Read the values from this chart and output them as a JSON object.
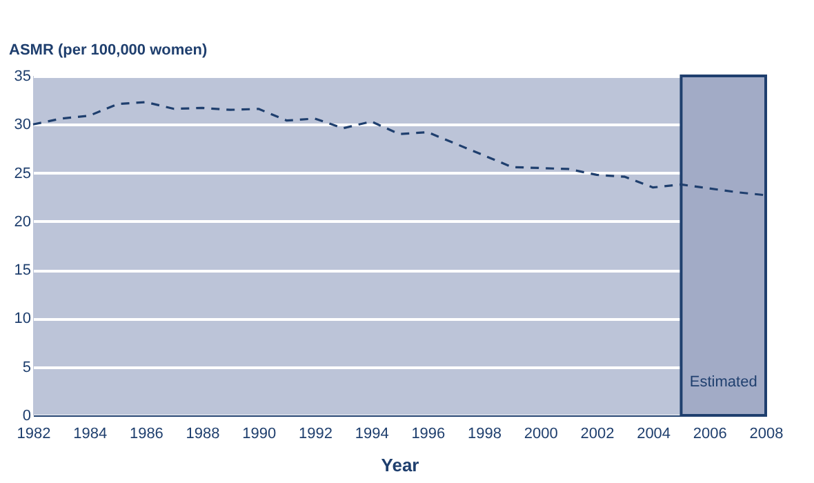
{
  "chart_data": {
    "type": "line",
    "ylabel": "ASMR (per 100,000 women)",
    "xlabel": "Year",
    "x": [
      1982,
      1983,
      1984,
      1985,
      1986,
      1987,
      1988,
      1989,
      1990,
      1991,
      1992,
      1993,
      1994,
      1995,
      1996,
      1997,
      1998,
      1999,
      2000,
      2001,
      2002,
      2003,
      2004,
      2005,
      2006,
      2007,
      2008
    ],
    "series": [
      {
        "color": "#1f3f6e",
        "values": [
          30.0,
          30.6,
          30.9,
          32.1,
          32.3,
          31.6,
          31.7,
          31.5,
          31.6,
          30.4,
          30.6,
          29.6,
          30.3,
          29.0,
          29.2,
          28.0,
          26.8,
          25.6,
          25.5,
          25.4,
          24.8,
          24.6,
          23.5,
          23.8,
          23.4,
          23.0,
          22.7
        ]
      }
    ],
    "xlim": [
      1982,
      2008
    ],
    "xticks": [
      1982,
      1984,
      1986,
      1988,
      1990,
      1992,
      1994,
      1996,
      1998,
      2000,
      2002,
      2004,
      2006,
      2008
    ],
    "ylim": [
      0,
      35
    ],
    "yticks": [
      0,
      5,
      10,
      15,
      20,
      25,
      30,
      35
    ],
    "bands": [
      {
        "axis": "x",
        "from": 2005,
        "to": 2008,
        "label": "Estimated",
        "color": "#a2abc6"
      }
    ],
    "grid": "y",
    "line_style": "dashed",
    "marker": "none"
  }
}
